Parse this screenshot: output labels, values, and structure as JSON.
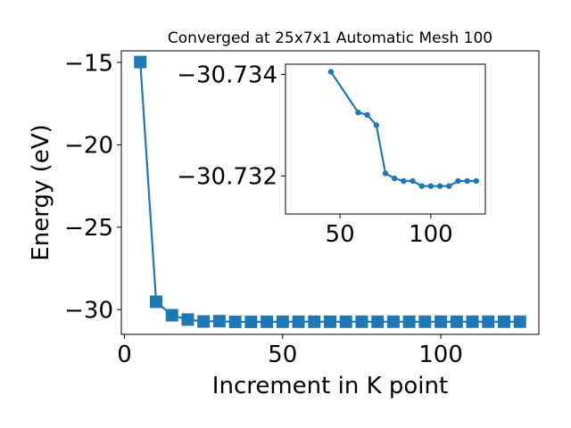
{
  "chart_data": [
    {
      "type": "line",
      "title": "Converged at 25x7x1 Automatic Mesh 100",
      "xlabel": "Increment in K point",
      "ylabel": "Energy (eV)",
      "xlim": [
        -1,
        131
      ],
      "ylim": [
        -31.5,
        -14.3
      ],
      "xticks": [
        0,
        50,
        100
      ],
      "xtick_labels": [
        "0",
        "50",
        "100"
      ],
      "yticks": [
        -15,
        -20,
        -25,
        -30
      ],
      "ytick_labels": [
        "−15",
        "−20",
        "−25",
        "−30"
      ],
      "grid": false,
      "color": "#1f77b4",
      "marker": "square",
      "x": [
        5,
        10,
        15,
        20,
        25,
        30,
        35,
        40,
        45,
        50,
        55,
        60,
        65,
        70,
        75,
        80,
        85,
        90,
        95,
        100,
        105,
        110,
        115,
        120,
        125
      ],
      "y": [
        -14.98,
        -29.52,
        -30.34,
        -30.6,
        -30.72,
        -30.7,
        -30.74,
        -30.74,
        -30.7343,
        -30.7332,
        -30.7335,
        -30.7326,
        -30.7327,
        -30.7329,
        -30.7323,
        -30.7321,
        -30.7321,
        -30.7321,
        -30.732,
        -30.732,
        -30.732,
        -30.732,
        -30.7319,
        -30.7319,
        -30.7319
      ]
    },
    {
      "type": "line",
      "title": "",
      "xlim": [
        20,
        130
      ],
      "ylim": [
        -30.73125,
        -30.7342
      ],
      "xticks": [
        50,
        100
      ],
      "xtick_labels": [
        "50",
        "100"
      ],
      "yticks": [
        -30.734,
        -30.732
      ],
      "ytick_labels": [
        "−30.734",
        "−30.732"
      ],
      "grid": false,
      "color": "#1f77b4",
      "marker": "circle",
      "x": [
        45,
        60,
        65,
        70,
        75,
        80,
        85,
        90,
        95,
        100,
        105,
        110,
        115,
        120,
        125
      ],
      "y": [
        -30.73405,
        -30.73325,
        -30.7332,
        -30.733,
        -30.73205,
        -30.73195,
        -30.7319,
        -30.7319,
        -30.7318,
        -30.7318,
        -30.7318,
        -30.7318,
        -30.7319,
        -30.7319,
        -30.7319
      ]
    }
  ]
}
